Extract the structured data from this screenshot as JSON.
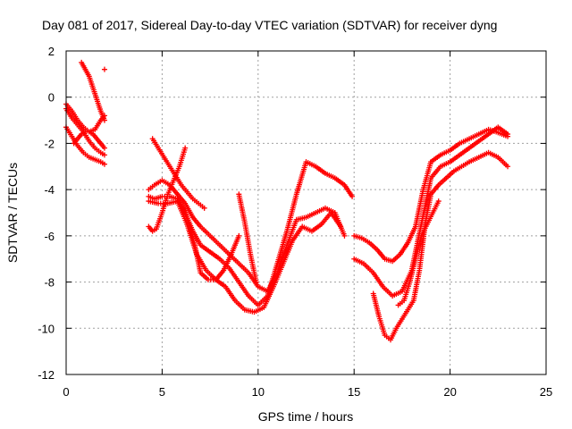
{
  "chart_data": {
    "type": "scatter",
    "title": "Day 081 of 2017, Sidereal Day-to-day VTEC variation (SDTVAR) for receiver dyng",
    "xlabel": "GPS time / hours",
    "ylabel": "SDTVAR / TECUs",
    "xlim": [
      0,
      25
    ],
    "ylim": [
      -12,
      2
    ],
    "xticks": [
      "0",
      "5",
      "10",
      "15",
      "20",
      "25"
    ],
    "yticks": [
      "2",
      "0",
      "-2",
      "-4",
      "-6",
      "-8",
      "-10",
      "-12"
    ],
    "grid": true,
    "marker": "+",
    "color": "#ff0000",
    "series": [
      {
        "x": [
          0.0,
          0.3,
          0.6,
          0.9,
          1.2,
          1.5,
          1.8,
          2.0
        ],
        "y": [
          -0.3,
          -0.6,
          -1.0,
          -1.3,
          -1.5,
          -1.4,
          -1.0,
          -0.8
        ]
      },
      {
        "x": [
          0.0,
          0.3,
          0.6,
          0.9,
          1.2,
          1.5,
          1.8,
          2.0
        ],
        "y": [
          -0.5,
          -0.9,
          -1.2,
          -1.5,
          -1.9,
          -2.2,
          -2.4,
          -2.5
        ]
      },
      {
        "x": [
          0.0,
          0.3,
          0.6,
          0.9,
          1.2,
          1.5,
          1.8,
          2.0
        ],
        "y": [
          -1.3,
          -1.7,
          -2.1,
          -2.4,
          -2.6,
          -2.7,
          -2.8,
          -2.9
        ]
      },
      {
        "x": [
          0.4,
          0.6,
          0.8,
          1.0,
          1.2,
          1.4,
          1.6,
          1.8,
          2.0
        ],
        "y": [
          -2.0,
          -1.8,
          -1.6,
          -1.5,
          -1.5,
          -1.6,
          -1.8,
          -2.0,
          -2.2
        ]
      },
      {
        "x": [
          0.8,
          1.0,
          1.2,
          1.4,
          1.6,
          1.8,
          2.0
        ],
        "y": [
          1.5,
          1.2,
          0.9,
          0.4,
          -0.1,
          -0.6,
          -1.0
        ]
      },
      {
        "x": [
          2.0
        ],
        "y": [
          1.2
        ]
      },
      {
        "x": [
          4.3,
          4.6,
          5.0,
          5.4,
          5.8,
          6.2,
          6.6,
          7.0,
          7.5,
          8.0,
          8.5,
          9.0,
          9.5,
          10.0,
          10.5,
          11.0,
          11.5,
          12.0,
          12.5,
          13.0,
          13.5,
          14.0,
          14.5,
          14.9
        ],
        "y": [
          -4.3,
          -4.4,
          -4.3,
          -4.3,
          -4.4,
          -5.0,
          -5.8,
          -6.4,
          -6.7,
          -7.0,
          -7.4,
          -8.0,
          -8.6,
          -9.0,
          -8.6,
          -7.2,
          -5.8,
          -4.2,
          -2.8,
          -3.0,
          -3.3,
          -3.5,
          -3.8,
          -4.3
        ]
      },
      {
        "x": [
          4.3,
          4.6,
          5.0,
          5.4,
          5.8,
          6.2,
          6.6,
          7.0,
          7.5,
          8.0,
          8.5,
          9.0,
          9.5,
          10.0,
          10.5,
          11.0,
          11.5,
          12.0,
          12.5,
          13.0,
          13.5,
          14.0,
          14.5
        ],
        "y": [
          -4.0,
          -3.8,
          -3.6,
          -3.8,
          -4.2,
          -4.6,
          -5.2,
          -5.6,
          -6.0,
          -6.4,
          -6.8,
          -7.2,
          -7.6,
          -8.2,
          -8.4,
          -7.6,
          -6.4,
          -5.3,
          -5.2,
          -5.0,
          -4.8,
          -5.0,
          -6.0
        ]
      },
      {
        "x": [
          4.3,
          4.8,
          5.3,
          5.8,
          6.3,
          6.8,
          7.3,
          7.8,
          8.3,
          8.8,
          9.3,
          9.8,
          10.3,
          10.8,
          11.3,
          11.8,
          12.3,
          12.8,
          13.3,
          13.8,
          14.3
        ],
        "y": [
          -4.5,
          -4.6,
          -4.6,
          -4.5,
          -5.5,
          -6.8,
          -7.5,
          -7.9,
          -8.2,
          -8.8,
          -9.2,
          -9.3,
          -9.1,
          -8.2,
          -7.2,
          -6.2,
          -5.6,
          -5.8,
          -5.5,
          -5.0,
          -5.6
        ]
      },
      {
        "x": [
          4.5,
          4.8,
          5.1,
          5.4,
          5.7,
          6.0,
          6.3,
          6.6,
          6.9,
          7.2
        ],
        "y": [
          -1.8,
          -2.2,
          -2.6,
          -3.0,
          -3.4,
          -3.8,
          -4.1,
          -4.4,
          -4.6,
          -4.8
        ]
      },
      {
        "x": [
          4.3,
          4.5,
          4.7,
          5.0,
          5.3,
          5.6,
          5.9,
          6.2
        ],
        "y": [
          -5.6,
          -5.8,
          -5.7,
          -5.0,
          -4.2,
          -3.6,
          -3.0,
          -2.2
        ]
      },
      {
        "x": [
          5.8,
          6.1,
          6.4,
          6.7,
          7.0,
          7.4,
          7.8,
          8.2,
          8.6,
          9.0
        ],
        "y": [
          -4.4,
          -4.8,
          -5.5,
          -6.4,
          -7.6,
          -7.9,
          -7.9,
          -7.5,
          -6.8,
          -6.0
        ]
      },
      {
        "x": [
          9.0,
          9.3,
          9.6,
          9.9
        ],
        "y": [
          -4.2,
          -5.4,
          -6.8,
          -8.0
        ]
      },
      {
        "x": [
          15.0,
          15.4,
          15.8,
          16.2,
          16.6,
          17.0,
          17.4,
          17.8,
          18.2,
          18.6,
          19.0,
          19.5,
          20.0,
          20.5,
          21.0,
          21.5,
          22.0,
          22.4,
          23.0
        ],
        "y": [
          -6.0,
          -6.1,
          -6.3,
          -6.6,
          -7.0,
          -7.1,
          -6.8,
          -6.3,
          -5.6,
          -4.0,
          -2.8,
          -2.5,
          -2.3,
          -2.0,
          -1.8,
          -1.6,
          -1.4,
          -1.5,
          -1.7
        ]
      },
      {
        "x": [
          15.0,
          15.5,
          16.0,
          16.5,
          17.0,
          17.5,
          18.0,
          18.5,
          19.0,
          19.5,
          20.0,
          20.5,
          21.0,
          21.5,
          22.0,
          22.5,
          23.0
        ],
        "y": [
          -7.0,
          -7.2,
          -7.6,
          -8.2,
          -8.6,
          -8.4,
          -7.5,
          -5.5,
          -3.5,
          -3.0,
          -2.8,
          -2.5,
          -2.2,
          -1.9,
          -1.6,
          -1.3,
          -1.6
        ]
      },
      {
        "x": [
          16.0,
          16.3,
          16.6,
          16.9,
          17.2,
          17.5,
          17.8,
          18.1,
          18.4,
          18.7,
          19.0,
          19.4,
          19.8,
          20.2,
          20.6,
          21.0,
          21.5,
          22.0,
          22.5,
          23.0
        ],
        "y": [
          -8.5,
          -9.5,
          -10.3,
          -10.5,
          -10.0,
          -9.6,
          -9.2,
          -8.8,
          -7.5,
          -5.5,
          -4.2,
          -3.8,
          -3.5,
          -3.2,
          -3.0,
          -2.8,
          -2.6,
          -2.4,
          -2.6,
          -3.0
        ]
      },
      {
        "x": [
          17.3,
          17.6,
          17.9,
          18.2,
          18.5,
          18.8,
          19.1,
          19.4
        ],
        "y": [
          -9.0,
          -8.8,
          -8.0,
          -7.0,
          -6.0,
          -5.5,
          -5.0,
          -4.5
        ]
      }
    ]
  }
}
